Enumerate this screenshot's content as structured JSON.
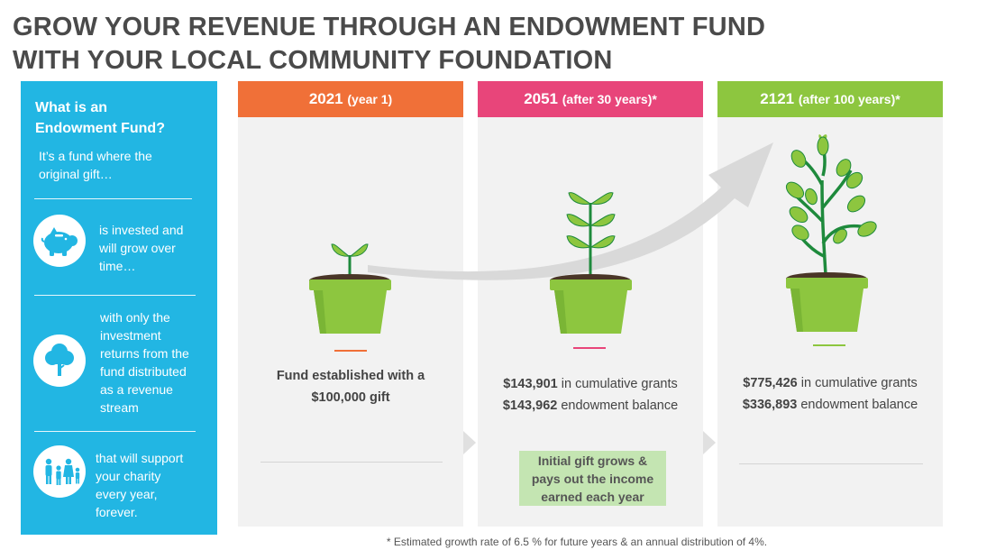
{
  "title": {
    "line1": "GROW YOUR REVENUE THROUGH AN ENDOWMENT FUND",
    "line2": "WITH YOUR LOCAL COMMUNITY FOUNDATION"
  },
  "sidebar": {
    "heading_line1": "What is an",
    "heading_line2": "Endowment Fund?",
    "intro_line1": "It’s a fund where the",
    "intro_line2": "original gift…",
    "items": [
      {
        "icon": "piggy-bank-icon",
        "lines": [
          "is invested and",
          "will grow over",
          "time…"
        ]
      },
      {
        "icon": "tree-icon",
        "lines": [
          "with only the",
          "investment",
          "returns from the",
          "fund distributed",
          "as a revenue",
          "stream"
        ]
      },
      {
        "icon": "family-icon",
        "lines": [
          "that will support",
          "your charity",
          "every year,",
          "forever."
        ]
      }
    ]
  },
  "panels": [
    {
      "year": "2021",
      "sub": "(year 1)",
      "color": "#f07038",
      "text_line1": "Fund established with a",
      "text_line2": "$100,000 gift"
    },
    {
      "year": "2051",
      "sub": "(after 30 years)*",
      "color": "#e8457a",
      "grants_value": "$143,901",
      "grants_label": " in cumulative grants",
      "balance_value": "$143,962",
      "balance_label": " endowment balance",
      "callout_line1": "Initial gift grows &",
      "callout_line2": "pays out the income",
      "callout_line3": "earned each year"
    },
    {
      "year": "2121",
      "sub": "(after 100 years)*",
      "color": "#8dc63f",
      "grants_value": "$775,426",
      "grants_label": " in cumulative grants",
      "balance_value": "$336,893",
      "balance_label": " endowment balance"
    }
  ],
  "colors": {
    "sidebar": "#22b6e3",
    "pot": "#8dc63f",
    "leaf": "#8dc63f",
    "stem": "#1e8a3c",
    "arrow": "#dadada"
  },
  "footnote": "* Estimated growth rate of 6.5 % for future years & an annual distribution of 4%."
}
